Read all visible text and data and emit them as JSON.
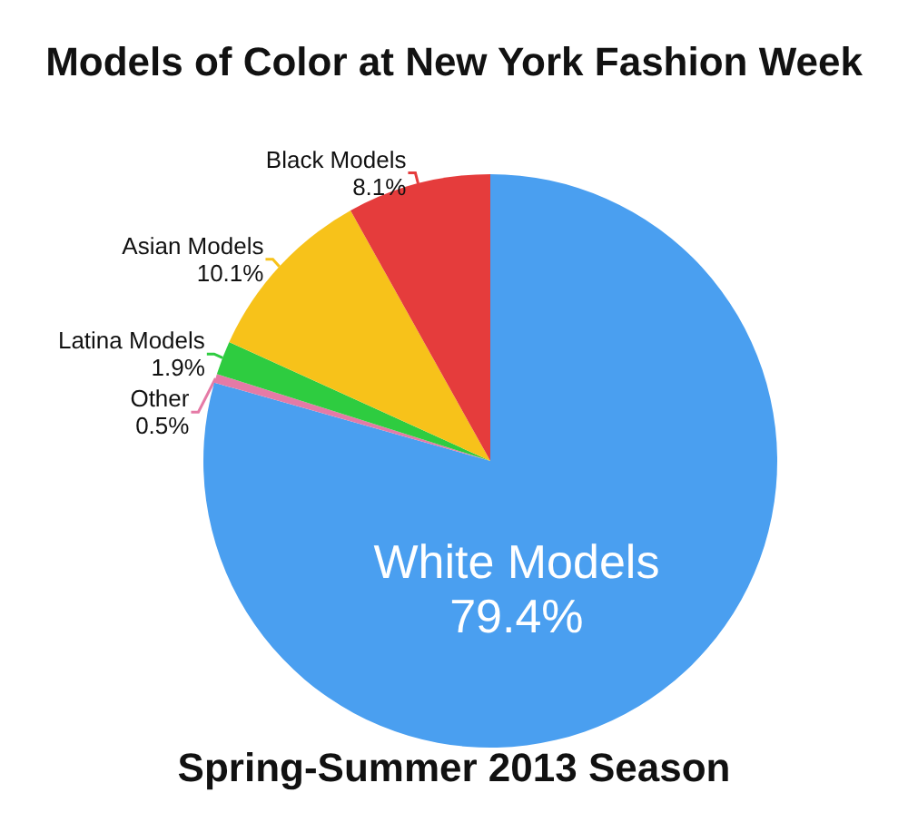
{
  "chart_data": {
    "type": "pie",
    "title": "Models of Color at New York Fashion Week",
    "annotations": [
      "Spring-Summer 2013 Season"
    ],
    "categories": [
      "White Models",
      "Other",
      "Latina Models",
      "Asian Models",
      "Black Models"
    ],
    "values": [
      79.4,
      0.5,
      1.9,
      10.1,
      8.1
    ],
    "colors": [
      "#4a9ff0",
      "#e57aa6",
      "#2ecc40",
      "#f7c21a",
      "#e53c3c"
    ],
    "value_labels": [
      "79.4%",
      "0.5%",
      "1.9%",
      "10.1%",
      "8.1%"
    ],
    "legend": false
  }
}
